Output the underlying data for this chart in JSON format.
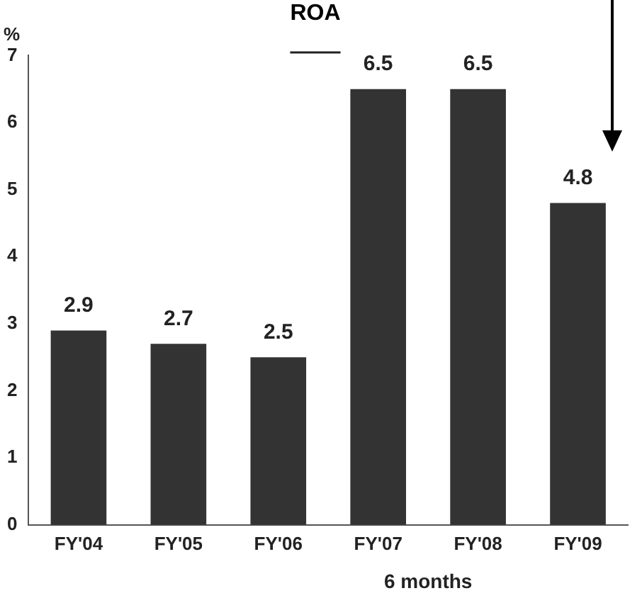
{
  "chart_data": {
    "type": "bar",
    "title": "ROA",
    "ylabel": "%",
    "categories": [
      "FY'04",
      "FY'05",
      "FY'06",
      "FY'07",
      "FY'08",
      "FY'09"
    ],
    "values": [
      2.9,
      2.7,
      2.5,
      6.5,
      6.5,
      4.8
    ],
    "color": "#333333",
    "ylim": [
      0,
      7
    ],
    "yticks": [
      0,
      1,
      2,
      3,
      4,
      5,
      6,
      7
    ],
    "grid": false,
    "legend": false,
    "data_labels": true,
    "annotations": [
      "6 months"
    ]
  }
}
